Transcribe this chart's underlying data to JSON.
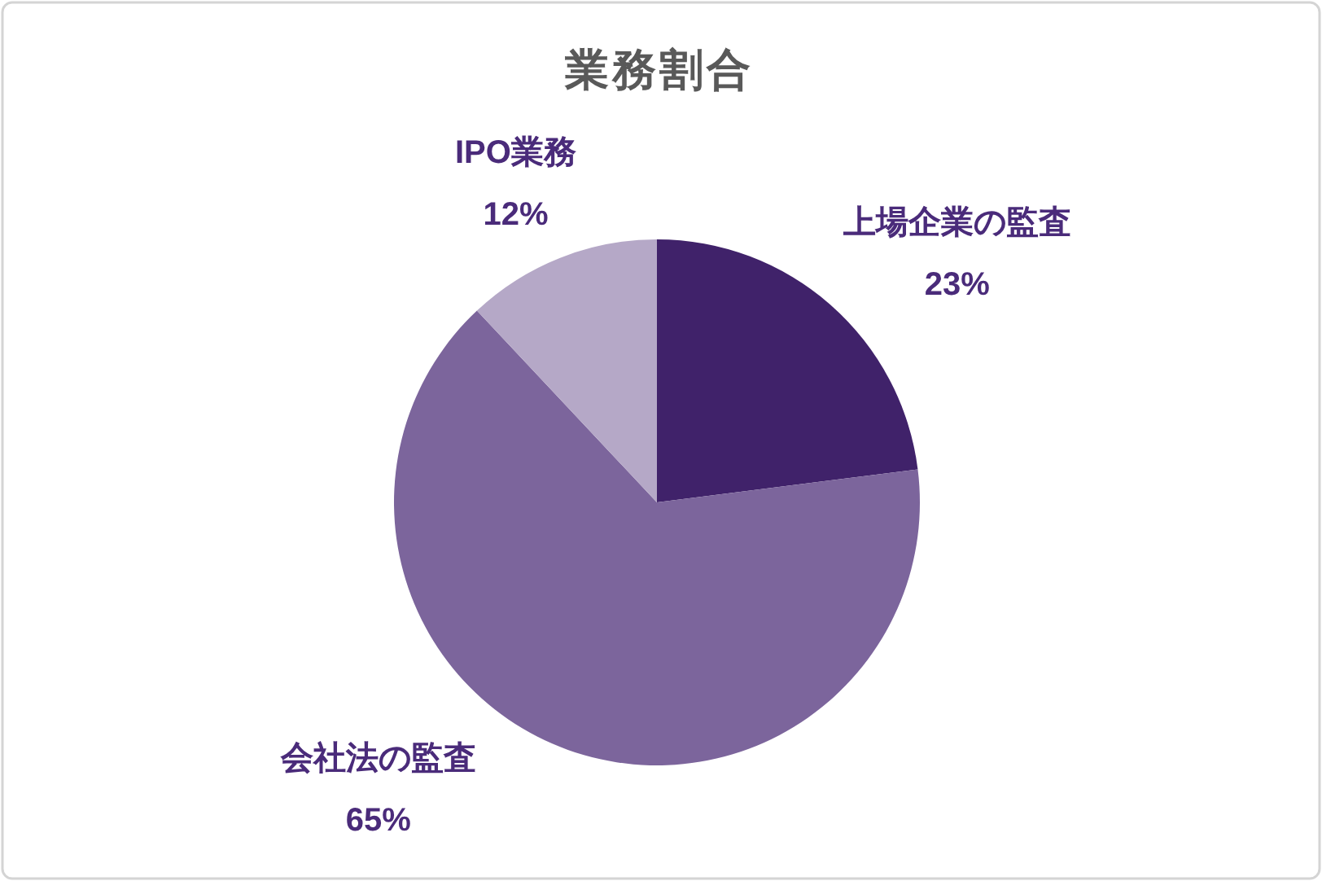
{
  "chart_data": {
    "type": "pie",
    "title": "業務割合",
    "categories": [
      "上場企業の監査",
      "会社法の監査",
      "IPO業務"
    ],
    "values": [
      23,
      65,
      12
    ],
    "value_labels": [
      "23%",
      "65%",
      "12%"
    ],
    "colors": [
      "#40226a",
      "#7c659c",
      "#b5a8c7"
    ]
  }
}
